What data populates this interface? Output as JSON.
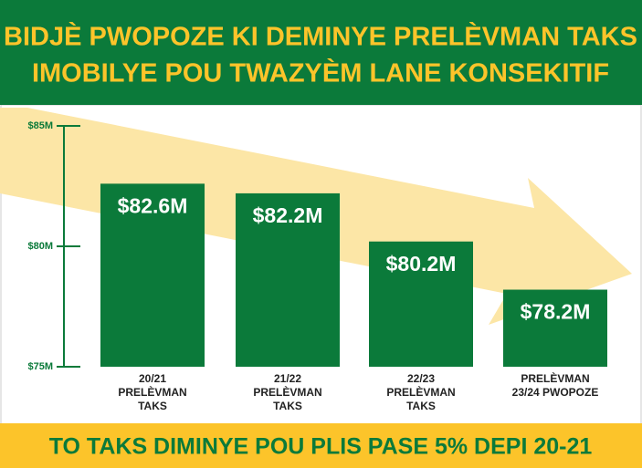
{
  "chart_data": {
    "type": "bar",
    "title": [
      "BIDJÈ PWOPOZE KI DEMINYE PRELÈVMAN TAKS",
      "IMOBILYE POU TWAZYÈM LANE KONSEKITIF"
    ],
    "categories": [
      [
        "20/21",
        "PRELÈVMAN",
        "TAKS"
      ],
      [
        "21/22",
        "PRELÈVMAN",
        "TAKS"
      ],
      [
        "22/23",
        "PRELÈVMAN",
        "TAKS"
      ],
      [
        "PRELÈVMAN",
        "23/24 PWOPOZE"
      ]
    ],
    "values": [
      82.6,
      82.2,
      80.2,
      78.2
    ],
    "value_labels": [
      "$82.6M",
      "$82.2M",
      "$80.2M",
      "$78.2M"
    ],
    "color": "#0b7a3a",
    "ylim": [
      75,
      85
    ],
    "yticks": [
      {
        "value": 75,
        "label": "$75M"
      },
      {
        "value": 80,
        "label": "$80M"
      },
      {
        "value": 85,
        "label": "$85M"
      }
    ],
    "annotation": "TO TAKS DIMINYE POU PLIS PASE 5% DEPI 20-21"
  }
}
